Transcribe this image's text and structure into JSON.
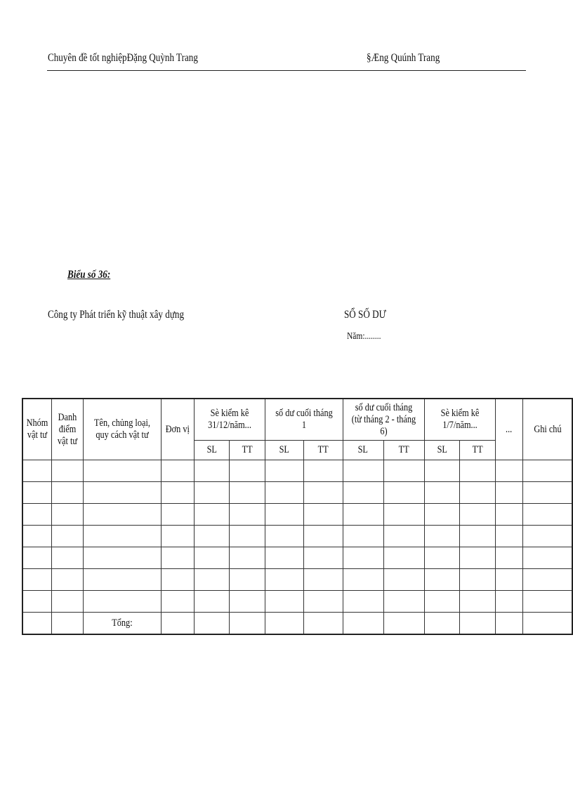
{
  "header": {
    "left": "Chuyên đề tốt nghiệpĐặng  Quỳnh Trang",
    "right": "§Æng Quúnh Trang"
  },
  "form_label": "Biểu số 36:",
  "company": "Công ty Phát triển kỹ thuật xây dựng",
  "doc_title": "SỔ SỐ DƯ",
  "year_label": "Năm:........",
  "table": {
    "columns": {
      "group": "Nhóm vật tư",
      "code": "Danh điểm vật tư",
      "name": "Tên, chủng loại, quy cách vật tư",
      "unit": "Đơn vị",
      "period1": "Sè kiểm kê 31/12/năm...",
      "period2": "số dư cuối tháng 1",
      "period3": "số dư cuối tháng (từ tháng 2 - tháng 6)",
      "period4": "Sè kiểm kê 1/7/năm...",
      "more": "...",
      "note": "Ghi chú"
    },
    "sub": {
      "sl": "SL",
      "tt": "TT"
    },
    "empty_rows": 7,
    "total_label": "Tổng:"
  }
}
